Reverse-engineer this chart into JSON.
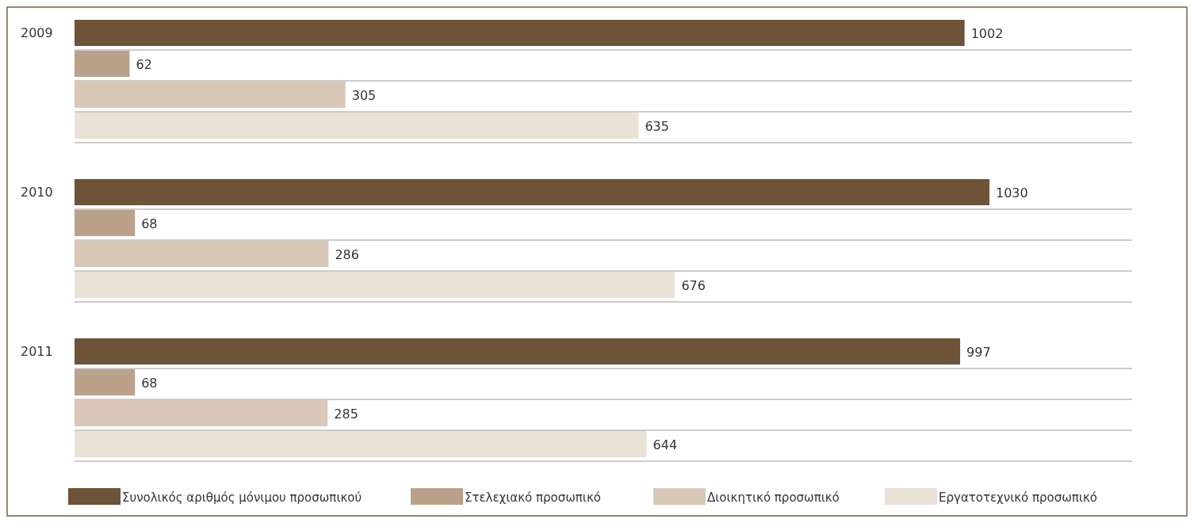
{
  "chart_data": {
    "type": "bar",
    "orientation": "horizontal",
    "categories": [
      "2009",
      "2010",
      "2011"
    ],
    "data_labels": true,
    "legend": "bottom",
    "series": [
      {
        "name": "Συνολικός αριθμός μόνιμου προσωπικού",
        "color": "#6e5339",
        "values": [
          1002,
          1030,
          997
        ]
      },
      {
        "name": "Στελεχιακό προσωπικό",
        "color": "#bba18a",
        "values": [
          62,
          68,
          68
        ]
      },
      {
        "name": "Διοικητικό προσωπικό",
        "color": "#d9c8b8",
        "values": [
          305,
          286,
          285
        ]
      },
      {
        "name": "Εργατοτεχνικό προσωπικό",
        "color": "#eae1d7",
        "values": [
          635,
          676,
          644
        ]
      }
    ]
  }
}
